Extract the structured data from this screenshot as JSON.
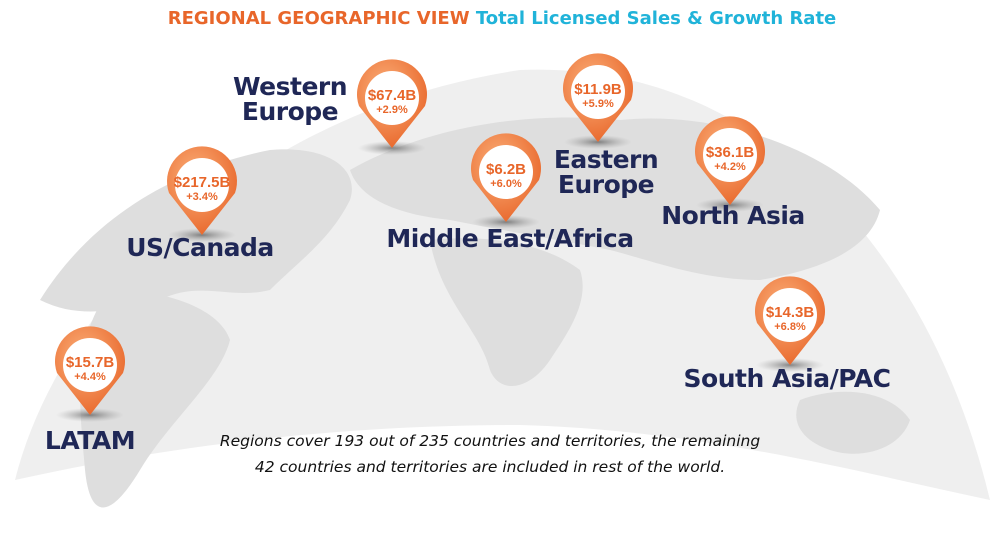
{
  "title": {
    "part1": "REGIONAL GEOGRAPHIC VIEW",
    "part2": "Total Licensed Sales & Growth Rate"
  },
  "regions": [
    {
      "name": [
        "Western",
        "Europe"
      ],
      "sales": "$67.4B",
      "growth": "+2.9%"
    },
    {
      "name": [
        "US/Canada"
      ],
      "sales": "$217.5B",
      "growth": "+3.4%"
    },
    {
      "name": [
        "LATAM"
      ],
      "sales": "$15.7B",
      "growth": "+4.4%"
    },
    {
      "name": [
        "Middle East/Africa"
      ],
      "sales": "$6.2B",
      "growth": "+6.0%"
    },
    {
      "name": [
        "Eastern",
        "Europe"
      ],
      "sales": "$11.9B",
      "growth": "+5.9%"
    },
    {
      "name": [
        "North Asia"
      ],
      "sales": "$36.1B",
      "growth": "+4.2%"
    },
    {
      "name": [
        "South Asia/PAC"
      ],
      "sales": "$14.3B",
      "growth": "+6.8%"
    }
  ],
  "note": [
    "Regions cover 193 out of 235 countries and territories, the remaining",
    "42 countries and territories are included in rest of the world."
  ]
}
